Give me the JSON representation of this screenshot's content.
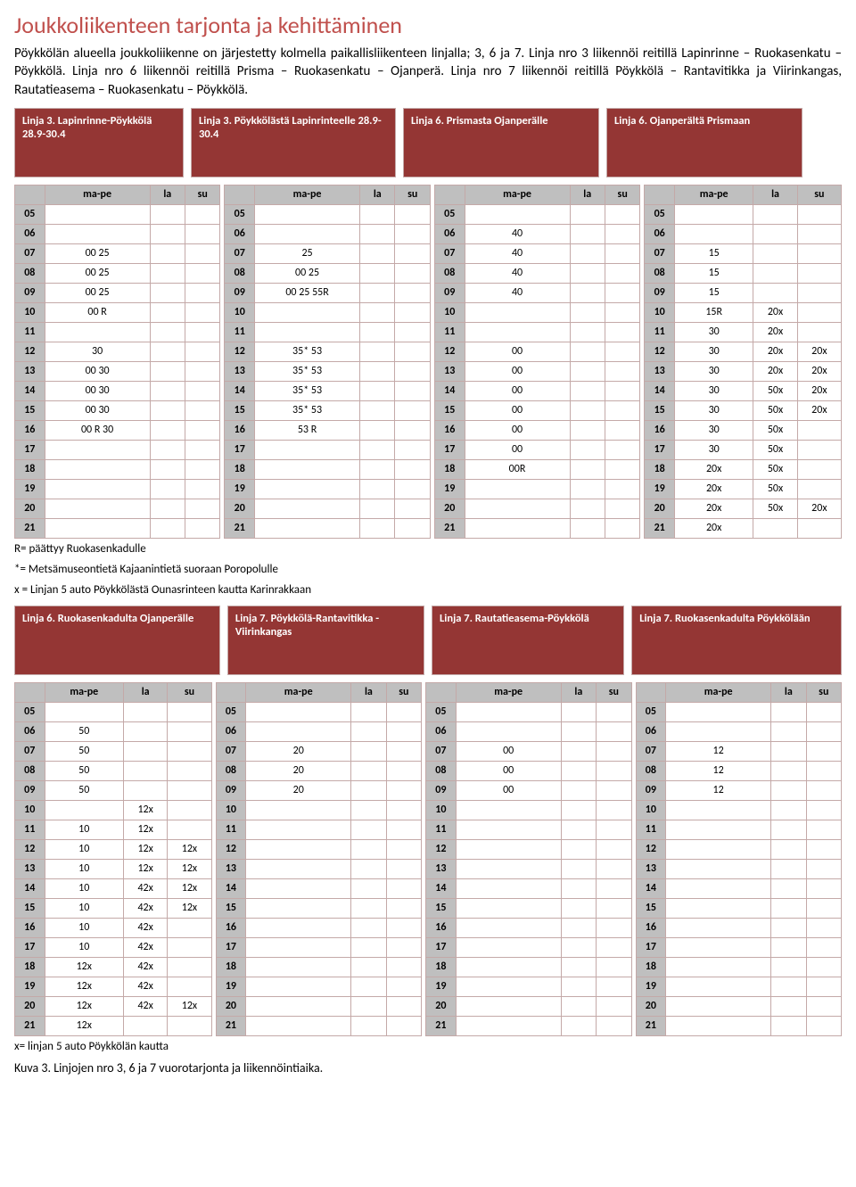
{
  "title": "Joukkoliikenteen tarjonta ja kehittäminen",
  "intro": "Pöykkölän alueella joukkoliikenne on järjestetty kolmella paikallisliikenteen linjalla; 3, 6 ja 7. Linja nro 3 liikennöi reitillä Lapinrinne – Ruokasenkatu – Pöykkölä. Linja nro 6 liikennöi reitillä Prisma – Ruokasenkatu – Ojanperä. Linja nro 7 liikennöi reitillä Pöykkölä – Rantavitikka ja Viirinkangas, Rautatieasema – Ruokasenkatu – Pöykkölä.",
  "dayHeaders": [
    "ma-pe",
    "la",
    "su"
  ],
  "set1": {
    "routes": [
      {
        "label": "Linja 3. Lapinrinne-Pöykkölä 28.9-30.4",
        "cols": [
          120,
          40,
          40
        ]
      },
      {
        "label": "Linja 3. Pöykkölästä Lapinrinteelle 28.9-30.4",
        "cols": [
          120,
          40,
          40
        ]
      },
      {
        "label": "Linja 6. Prismasta Ojanperälle",
        "cols": [
          120,
          40,
          40
        ]
      },
      {
        "label": "Linja 6. Ojanperältä Prismaan",
        "cols": [
          90,
          50,
          50
        ]
      }
    ],
    "hours": [
      "05",
      "06",
      "07",
      "08",
      "09",
      "10",
      "11",
      "12",
      "13",
      "14",
      "15",
      "16",
      "17",
      "18",
      "19",
      "20",
      "21"
    ],
    "data": [
      [
        [
          "",
          "",
          ""
        ],
        [
          "",
          "",
          ""
        ],
        [
          "",
          "",
          ""
        ],
        [
          "",
          "",
          ""
        ]
      ],
      [
        [
          "",
          "",
          ""
        ],
        [
          "",
          "",
          ""
        ],
        [
          "40",
          "",
          ""
        ],
        [
          "",
          "",
          ""
        ]
      ],
      [
        [
          "00 25",
          "",
          ""
        ],
        [
          "25",
          "",
          ""
        ],
        [
          "40",
          "",
          ""
        ],
        [
          "15",
          "",
          ""
        ]
      ],
      [
        [
          "00 25",
          "",
          ""
        ],
        [
          "00 25",
          "",
          ""
        ],
        [
          "40",
          "",
          ""
        ],
        [
          "15",
          "",
          ""
        ]
      ],
      [
        [
          "00 25",
          "",
          ""
        ],
        [
          "00 25 55R",
          "",
          ""
        ],
        [
          "40",
          "",
          ""
        ],
        [
          "15",
          "",
          ""
        ]
      ],
      [
        [
          "00 R",
          "",
          ""
        ],
        [
          "",
          "",
          ""
        ],
        [
          "",
          "",
          ""
        ],
        [
          "15R",
          "20x",
          ""
        ]
      ],
      [
        [
          "",
          "",
          ""
        ],
        [
          "",
          "",
          ""
        ],
        [
          "",
          "",
          ""
        ],
        [
          "30",
          "20x",
          ""
        ]
      ],
      [
        [
          "30",
          "",
          ""
        ],
        [
          "35* 53",
          "",
          ""
        ],
        [
          "00",
          "",
          ""
        ],
        [
          "30",
          "20x",
          "20x"
        ]
      ],
      [
        [
          "00 30",
          "",
          ""
        ],
        [
          "35* 53",
          "",
          ""
        ],
        [
          "00",
          "",
          ""
        ],
        [
          "30",
          "20x",
          "20x"
        ]
      ],
      [
        [
          "00 30",
          "",
          ""
        ],
        [
          "35* 53",
          "",
          ""
        ],
        [
          "00",
          "",
          ""
        ],
        [
          "30",
          "50x",
          "20x"
        ]
      ],
      [
        [
          "00 30",
          "",
          ""
        ],
        [
          "35* 53",
          "",
          ""
        ],
        [
          "00",
          "",
          ""
        ],
        [
          "30",
          "50x",
          "20x"
        ]
      ],
      [
        [
          "00 R 30",
          "",
          ""
        ],
        [
          "53 R",
          "",
          ""
        ],
        [
          "00",
          "",
          ""
        ],
        [
          "30",
          "50x",
          ""
        ]
      ],
      [
        [
          "",
          "",
          ""
        ],
        [
          "",
          "",
          ""
        ],
        [
          "00",
          "",
          ""
        ],
        [
          "30",
          "50x",
          ""
        ]
      ],
      [
        [
          "",
          "",
          ""
        ],
        [
          "",
          "",
          ""
        ],
        [
          "00R",
          "",
          ""
        ],
        [
          "20x",
          "50x",
          ""
        ]
      ],
      [
        [
          "",
          "",
          ""
        ],
        [
          "",
          "",
          ""
        ],
        [
          "",
          "",
          ""
        ],
        [
          "20x",
          "50x",
          ""
        ]
      ],
      [
        [
          "",
          "",
          ""
        ],
        [
          "",
          "",
          ""
        ],
        [
          "",
          "",
          ""
        ],
        [
          "20x",
          "50x",
          "20x"
        ]
      ],
      [
        [
          "",
          "",
          ""
        ],
        [
          "",
          "",
          ""
        ],
        [
          "",
          "",
          ""
        ],
        [
          "20x",
          "",
          ""
        ]
      ]
    ],
    "notes": [
      "R= päättyy Ruokasenkadulle",
      "*= Metsämuseontietä Kajaanintietä suoraan Poropolulle",
      "x = Linjan 5 auto Pöykkölästä Ounasrinteen kautta Karinrakkaan"
    ]
  },
  "set2": {
    "routes": [
      {
        "label": "Linja 6. Ruokasenkadulta Ojanperälle",
        "cols": [
          90,
          50,
          50
        ]
      },
      {
        "label": "Linja 7. Pöykkölä-Rantavitikka -Viirinkangas",
        "cols": [
          120,
          40,
          40
        ]
      },
      {
        "label": "Linja 7. Rautatieasema-Pöykkölä",
        "cols": [
          120,
          40,
          40
        ]
      },
      {
        "label": "Linja 7. Ruokasenkadulta Pöykkölään",
        "cols": [
          120,
          40,
          40
        ]
      }
    ],
    "hours": [
      "05",
      "06",
      "07",
      "08",
      "09",
      "10",
      "11",
      "12",
      "13",
      "14",
      "15",
      "16",
      "17",
      "18",
      "19",
      "20",
      "21"
    ],
    "data": [
      [
        [
          "",
          "",
          ""
        ],
        [
          "",
          "",
          ""
        ],
        [
          "",
          "",
          ""
        ],
        [
          "",
          "",
          ""
        ]
      ],
      [
        [
          "50",
          "",
          ""
        ],
        [
          "",
          "",
          ""
        ],
        [
          "",
          "",
          ""
        ],
        [
          "",
          "",
          ""
        ]
      ],
      [
        [
          "50",
          "",
          ""
        ],
        [
          "20",
          "",
          ""
        ],
        [
          "00",
          "",
          ""
        ],
        [
          "12",
          "",
          ""
        ]
      ],
      [
        [
          "50",
          "",
          ""
        ],
        [
          "20",
          "",
          ""
        ],
        [
          "00",
          "",
          ""
        ],
        [
          "12",
          "",
          ""
        ]
      ],
      [
        [
          "50",
          "",
          ""
        ],
        [
          "20",
          "",
          ""
        ],
        [
          "00",
          "",
          ""
        ],
        [
          "12",
          "",
          ""
        ]
      ],
      [
        [
          "",
          "12x",
          ""
        ],
        [
          "",
          "",
          ""
        ],
        [
          "",
          "",
          ""
        ],
        [
          "",
          "",
          ""
        ]
      ],
      [
        [
          "10",
          "12x",
          ""
        ],
        [
          "",
          "",
          ""
        ],
        [
          "",
          "",
          ""
        ],
        [
          "",
          "",
          ""
        ]
      ],
      [
        [
          "10",
          "12x",
          "12x"
        ],
        [
          "",
          "",
          ""
        ],
        [
          "",
          "",
          ""
        ],
        [
          "",
          "",
          ""
        ]
      ],
      [
        [
          "10",
          "12x",
          "12x"
        ],
        [
          "",
          "",
          ""
        ],
        [
          "",
          "",
          ""
        ],
        [
          "",
          "",
          ""
        ]
      ],
      [
        [
          "10",
          "42x",
          "12x"
        ],
        [
          "",
          "",
          ""
        ],
        [
          "",
          "",
          ""
        ],
        [
          "",
          "",
          ""
        ]
      ],
      [
        [
          "10",
          "42x",
          "12x"
        ],
        [
          "",
          "",
          ""
        ],
        [
          "",
          "",
          ""
        ],
        [
          "",
          "",
          ""
        ]
      ],
      [
        [
          "10",
          "42x",
          ""
        ],
        [
          "",
          "",
          ""
        ],
        [
          "",
          "",
          ""
        ],
        [
          "",
          "",
          ""
        ]
      ],
      [
        [
          "10",
          "42x",
          ""
        ],
        [
          "",
          "",
          ""
        ],
        [
          "",
          "",
          ""
        ],
        [
          "",
          "",
          ""
        ]
      ],
      [
        [
          "12x",
          "42x",
          ""
        ],
        [
          "",
          "",
          ""
        ],
        [
          "",
          "",
          ""
        ],
        [
          "",
          "",
          ""
        ]
      ],
      [
        [
          "12x",
          "42x",
          ""
        ],
        [
          "",
          "",
          ""
        ],
        [
          "",
          "",
          ""
        ],
        [
          "",
          "",
          ""
        ]
      ],
      [
        [
          "12x",
          "42x",
          "12x"
        ],
        [
          "",
          "",
          ""
        ],
        [
          "",
          "",
          ""
        ],
        [
          "",
          "",
          ""
        ]
      ],
      [
        [
          "12x",
          "",
          ""
        ],
        [
          "",
          "",
          ""
        ],
        [
          "",
          "",
          ""
        ],
        [
          "",
          "",
          ""
        ]
      ]
    ],
    "notes": [
      "x= linjan 5 auto Pöykkölän kautta"
    ]
  },
  "caption": "Kuva 3. Linjojen nro 3, 6 ja 7 vuorotarjonta ja liikennöintiaika."
}
